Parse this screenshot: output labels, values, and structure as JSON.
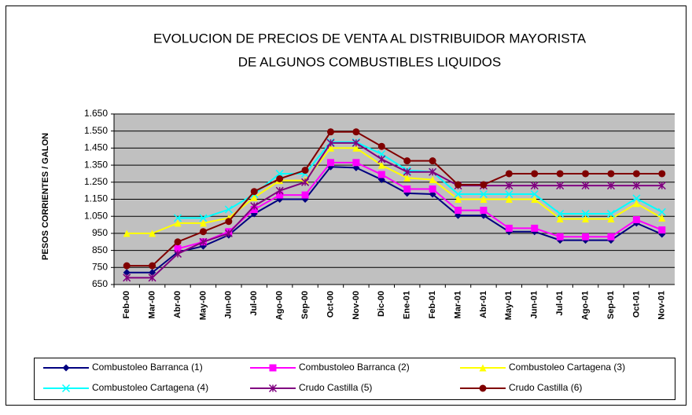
{
  "chart_data": {
    "type": "line",
    "title": [
      "EVOLUCION DE PRECIOS DE VENTA AL DISTRIBUIDOR MAYORISTA",
      "DE ALGUNOS COMBUSTIBLES LIQUIDOS"
    ],
    "y_label": "PESOS CORRIENTES / GALON",
    "categories": [
      "Feb-00",
      "Mar-00",
      "Abr-00",
      "May-00",
      "Jun-00",
      "Jul-00",
      "Ago-00",
      "Sep-00",
      "Oct-00",
      "Nov-00",
      "Dic-00",
      "Ene-01",
      "Feb-01",
      "Mar-01",
      "Abr-01",
      "May-01",
      "Jun-01",
      "Jul-01",
      "Ago-01",
      "Sep-01",
      "Oct-01",
      "Nov-01"
    ],
    "ylim": [
      650,
      1650
    ],
    "yticks": [
      {
        "value": 1650,
        "label": "1.650"
      },
      {
        "value": 1550,
        "label": "1.550"
      },
      {
        "value": 1450,
        "label": "1.450"
      },
      {
        "value": 1350,
        "label": "1.350"
      },
      {
        "value": 1250,
        "label": "1.250"
      },
      {
        "value": 1150,
        "label": "1.150"
      },
      {
        "value": 1050,
        "label": "1.050"
      },
      950,
      850,
      750,
      650
    ],
    "grid": true,
    "series": [
      {
        "name": "Combustoleo Barranca (1)",
        "color": "#000080",
        "marker": "diamond",
        "values": [
          720,
          720,
          840,
          875,
          940,
          1065,
          1150,
          1150,
          1340,
          1335,
          1265,
          1185,
          1180,
          1055,
          1055,
          960,
          960,
          910,
          910,
          910,
          1010,
          945
        ]
      },
      {
        "name": "Combustoleo Barranca (2)",
        "color": "#ff00ff",
        "marker": "square",
        "values": [
          null,
          null,
          860,
          900,
          960,
          1090,
          1175,
          1175,
          1365,
          1365,
          1295,
          1210,
          1210,
          1085,
          1085,
          980,
          980,
          930,
          930,
          930,
          1030,
          970
        ]
      },
      {
        "name": "Combustoleo Cartagena (3)",
        "color": "#ffff00",
        "marker": "triangle",
        "values": [
          950,
          950,
          1010,
          1010,
          1040,
          1160,
          1260,
          1260,
          1450,
          1450,
          1350,
          1275,
          1265,
          1150,
          1150,
          1150,
          1150,
          1035,
          1035,
          1035,
          1125,
          1040
        ]
      },
      {
        "name": "Combustoleo Cartagena (4)",
        "color": "#00ffff",
        "marker": "x",
        "values": [
          null,
          null,
          1040,
          1040,
          1090,
          1180,
          1300,
          1300,
          1485,
          1485,
          1415,
          1320,
          1310,
          1180,
          1180,
          1180,
          1180,
          1065,
          1065,
          1065,
          1155,
          1075
        ]
      },
      {
        "name": "Crudo Castilla (5)",
        "color": "#800080",
        "marker": "star",
        "values": [
          690,
          690,
          830,
          900,
          950,
          1110,
          1200,
          1250,
          1480,
          1480,
          1385,
          1310,
          1310,
          1230,
          1230,
          1230,
          1230,
          1230,
          1230,
          1230,
          1230,
          1230
        ]
      },
      {
        "name": "Crudo Castilla (6)",
        "color": "#800000",
        "marker": "circle",
        "values": [
          760,
          760,
          900,
          960,
          1020,
          1195,
          1270,
          1320,
          1545,
          1545,
          1460,
          1375,
          1375,
          1235,
          1235,
          1300,
          1300,
          1300,
          1300,
          1300,
          1300,
          1300
        ]
      }
    ]
  }
}
